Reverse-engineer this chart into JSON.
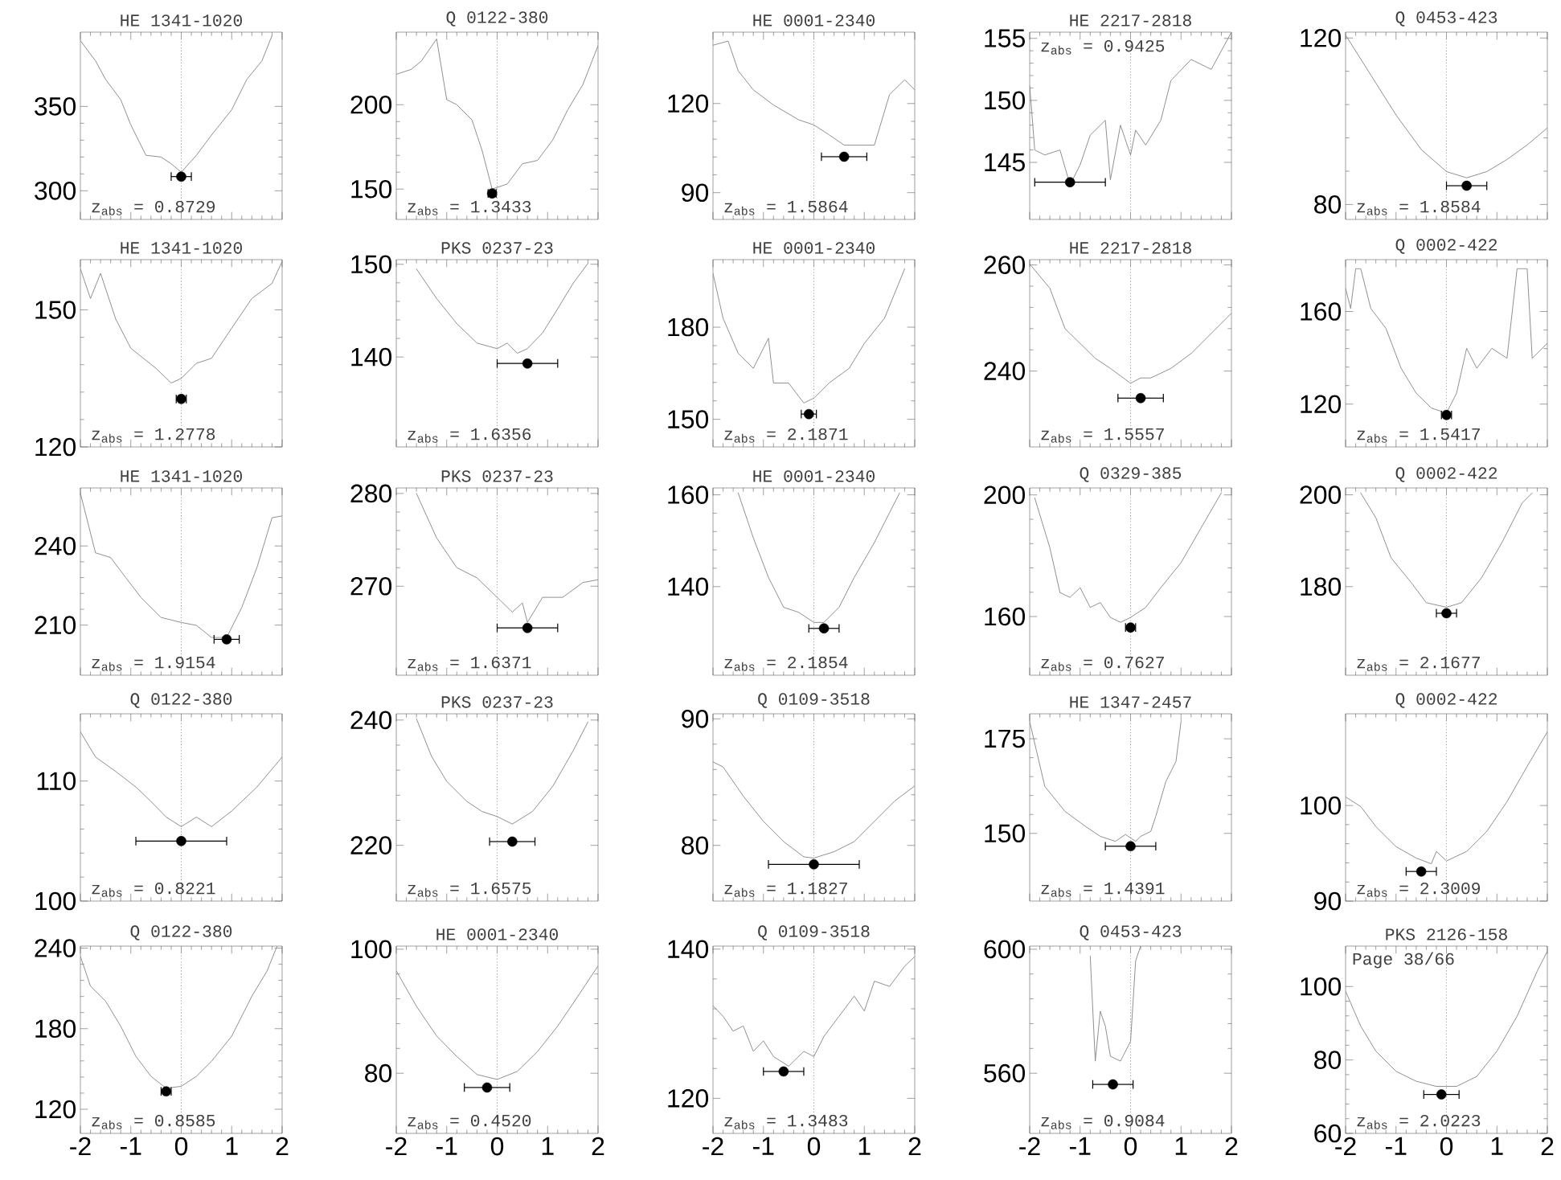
{
  "chart_data": [
    {
      "type": "line",
      "title": "HE 1341-1020",
      "xlim": [
        -2,
        2
      ],
      "ylim": [
        283,
        394
      ],
      "xticks": [
        -2,
        -1,
        0,
        1,
        2
      ],
      "yticks": [
        300,
        350
      ],
      "tick_labels": "y",
      "ref_lines": [
        {
          "axis": "x",
          "value": 0,
          "line_style": "dotted",
          "color": "#999999"
        }
      ],
      "annotations": [
        "z$_{abs}$ = 0.8729"
      ],
      "series": [
        {
          "type": "line",
          "color": "#888888",
          "x": [
            -2,
            -1.7,
            -1.5,
            -1.2,
            -1,
            -0.7,
            -0.4,
            -0.2,
            0,
            0.3,
            0.6,
            1,
            1.3,
            1.6,
            1.8
          ],
          "values": [
            389,
            377,
            366,
            354,
            339,
            321,
            320,
            316,
            311,
            321,
            333,
            348,
            366,
            377,
            392
          ]
        },
        {
          "type": "scatter",
          "color": "#000000",
          "marker": "circle",
          "x": [
            0
          ],
          "values": [
            308.4
          ],
          "xerrors": [
            0.2
          ]
        }
      ]
    },
    {
      "type": "line",
      "title": "Q 0122-380",
      "xlim": [
        -2,
        2
      ],
      "ylim": [
        132,
        243
      ],
      "xticks": [
        -2,
        -1,
        0,
        1,
        2
      ],
      "yticks": [
        150,
        200
      ],
      "tick_labels": "y",
      "ref_lines": [
        {
          "axis": "x",
          "value": 0,
          "line_style": "dotted",
          "color": "#999999"
        }
      ],
      "annotations": [
        "z$_{abs}$ = 1.3433"
      ],
      "series": [
        {
          "type": "line",
          "color": "#888888",
          "x": [
            -2,
            -1.7,
            -1.5,
            -1.2,
            -1,
            -0.8,
            -0.5,
            -0.3,
            -0.1,
            0.2,
            0.5,
            0.8,
            1.1,
            1.4,
            1.7,
            2
          ],
          "values": [
            218,
            221,
            226,
            239,
            203,
            200,
            191,
            173,
            150,
            153,
            165,
            167,
            179,
            197,
            212,
            235
          ]
        },
        {
          "type": "scatter",
          "color": "#000000",
          "marker": "circle",
          "x": [
            -0.1
          ],
          "values": [
            147.4
          ],
          "xerrors": [
            0.08
          ]
        }
      ]
    },
    {
      "type": "line",
      "title": "HE 0001-2340",
      "xlim": [
        -2,
        2
      ],
      "ylim": [
        81,
        144
      ],
      "xticks": [
        -2,
        -1,
        0,
        1,
        2
      ],
      "yticks": [
        90,
        120
      ],
      "tick_labels": "y",
      "ref_lines": [
        {
          "axis": "x",
          "value": 0,
          "line_style": "dotted",
          "color": "#999999"
        }
      ],
      "annotations": [
        "z$_{abs}$ = 1.5864"
      ],
      "series": [
        {
          "type": "line",
          "color": "#888888",
          "x": [
            -2,
            -1.7,
            -1.5,
            -1.2,
            -0.8,
            -0.3,
            0,
            0.3,
            0.6,
            0.9,
            1.2,
            1.5,
            1.8,
            2
          ],
          "values": [
            139.6,
            141,
            131,
            124.6,
            119.5,
            114.5,
            112.8,
            109.5,
            106,
            106,
            106,
            123,
            128,
            124.6
          ]
        },
        {
          "type": "scatter",
          "color": "#000000",
          "marker": "circle",
          "x": [
            0.6
          ],
          "values": [
            102.1
          ],
          "xerrors": [
            0.45
          ]
        }
      ]
    },
    {
      "type": "line",
      "title": "HE 2217-2818",
      "xlim": [
        -2,
        2
      ],
      "ylim": [
        140.4,
        155.5
      ],
      "xticks": [
        -2,
        -1,
        0,
        1,
        2
      ],
      "yticks": [
        145,
        150,
        155
      ],
      "tick_labels": "y",
      "ref_lines": [
        {
          "axis": "x",
          "value": 0,
          "line_style": "dotted",
          "color": "#999999"
        }
      ],
      "annotations": [
        "z$_{abs}$ = 0.9425"
      ],
      "series": [
        {
          "type": "line",
          "color": "#888888",
          "x": [
            -2,
            -1.9,
            -1.7,
            -1.4,
            -1.2,
            -1,
            -0.8,
            -0.5,
            -0.4,
            -0.2,
            0,
            0.1,
            0.3,
            0.6,
            0.8,
            1.2,
            1.6,
            2
          ],
          "values": [
            151.2,
            146,
            145.6,
            146,
            143.2,
            144.8,
            147.2,
            148.4,
            143.6,
            148,
            145.6,
            147.6,
            146.4,
            148.4,
            151.6,
            153.3,
            152.5,
            155.5
          ]
        },
        {
          "type": "scatter",
          "color": "#000000",
          "marker": "circle",
          "x": [
            -1.2
          ],
          "values": [
            143.4
          ],
          "xerrors": [
            0.7
          ]
        }
      ]
    },
    {
      "type": "line",
      "title": "Q 0453-423",
      "xlim": [
        -2,
        2
      ],
      "ylim": [
        76.4,
        121.4
      ],
      "xticks": [
        -2,
        -1,
        0,
        1,
        2
      ],
      "yticks": [
        80,
        120
      ],
      "tick_labels": "y",
      "ref_lines": [
        {
          "axis": "x",
          "value": 0,
          "line_style": "dotted",
          "color": "#999999"
        }
      ],
      "annotations": [
        "z$_{abs}$ = 1.8584"
      ],
      "series": [
        {
          "type": "line",
          "color": "#888888",
          "x": [
            -2,
            -1.5,
            -1,
            -0.5,
            0,
            0.4,
            0.8,
            1.2,
            1.6,
            2
          ],
          "values": [
            120.7,
            111.1,
            101.5,
            93.2,
            87.9,
            86.4,
            87.9,
            90.8,
            94.3,
            98.4
          ]
        },
        {
          "type": "scatter",
          "color": "#000000",
          "marker": "circle",
          "x": [
            0.4
          ],
          "values": [
            84.5
          ],
          "xerrors": [
            0.4
          ]
        }
      ]
    },
    {
      "type": "line",
      "title": "HE 1341-1020",
      "xlim": [
        -2,
        2
      ],
      "ylim": [
        120,
        161
      ],
      "xticks": [
        -2,
        -1,
        0,
        1,
        2
      ],
      "yticks": [
        120,
        150
      ],
      "tick_labels": "y",
      "ref_lines": [
        {
          "axis": "x",
          "value": 0,
          "line_style": "dotted",
          "color": "#999999"
        }
      ],
      "annotations": [
        "z$_{abs}$ = 1.2778"
      ],
      "series": [
        {
          "type": "line",
          "color": "#888888",
          "x": [
            -2,
            -1.8,
            -1.6,
            -1.3,
            -1,
            -0.5,
            -0.2,
            0,
            0.3,
            0.6,
            1,
            1.4,
            1.8,
            2
          ],
          "values": [
            159,
            152.5,
            158,
            148,
            141.6,
            137.2,
            134,
            135,
            138.3,
            139.4,
            146,
            152.5,
            155.8,
            160.6
          ]
        },
        {
          "type": "scatter",
          "color": "#000000",
          "marker": "circle",
          "x": [
            0
          ],
          "values": [
            130.5
          ],
          "xerrors": [
            0.1
          ]
        }
      ]
    },
    {
      "type": "line",
      "title": "PKS 0237-23",
      "xlim": [
        -2,
        2
      ],
      "ylim": [
        130.3,
        150.5
      ],
      "xticks": [
        -2,
        -1,
        0,
        1,
        2
      ],
      "yticks": [
        140,
        150
      ],
      "tick_labels": "y",
      "ref_lines": [
        {
          "axis": "x",
          "value": 0,
          "line_style": "dotted",
          "color": "#999999"
        }
      ],
      "annotations": [
        "z$_{abs}$ = 1.6356"
      ],
      "series": [
        {
          "type": "line",
          "color": "#888888",
          "x": [
            -1.6,
            -1.2,
            -0.8,
            -0.4,
            0,
            0.2,
            0.4,
            0.6,
            0.9,
            1.2,
            1.5,
            1.8
          ],
          "values": [
            149.5,
            146.3,
            143.6,
            141.5,
            140.9,
            141.5,
            140.4,
            140.9,
            142.6,
            145.2,
            147.9,
            150.1
          ]
        },
        {
          "type": "scatter",
          "color": "#000000",
          "marker": "circle",
          "x": [
            0.6
          ],
          "values": [
            139.3
          ],
          "xerrors": [
            0.6
          ]
        }
      ]
    },
    {
      "type": "line",
      "title": "HE 0001-2340",
      "xlim": [
        -2,
        2
      ],
      "ylim": [
        141,
        202
      ],
      "xticks": [
        -2,
        -1,
        0,
        1,
        2
      ],
      "yticks": [
        150,
        180
      ],
      "tick_labels": "y",
      "ref_lines": [
        {
          "axis": "x",
          "value": 0,
          "line_style": "dotted",
          "color": "#999999"
        }
      ],
      "annotations": [
        "z$_{abs}$ = 2.1871"
      ],
      "series": [
        {
          "type": "line",
          "color": "#888888",
          "x": [
            -2,
            -1.8,
            -1.5,
            -1.2,
            -0.9,
            -0.8,
            -0.5,
            -0.2,
            0,
            0.3,
            0.7,
            1,
            1.4,
            1.8
          ],
          "values": [
            197.5,
            182.9,
            171.5,
            166.6,
            176.4,
            161.8,
            161.8,
            155.3,
            156.9,
            161.8,
            166.6,
            174.7,
            182.9,
            199
          ]
        },
        {
          "type": "scatter",
          "color": "#000000",
          "marker": "circle",
          "x": [
            -0.1
          ],
          "values": [
            151.7
          ],
          "xerrors": [
            0.15
          ]
        }
      ]
    },
    {
      "type": "line",
      "title": "HE 2217-2818",
      "xlim": [
        -2,
        2
      ],
      "ylim": [
        225.7,
        261
      ],
      "xticks": [
        -2,
        -1,
        0,
        1,
        2
      ],
      "yticks": [
        240,
        260
      ],
      "tick_labels": "y",
      "ref_lines": [
        {
          "axis": "x",
          "value": 0,
          "line_style": "dotted",
          "color": "#999999"
        }
      ],
      "annotations": [
        "z$_{abs}$ = 1.5557"
      ],
      "series": [
        {
          "type": "line",
          "color": "#888888",
          "x": [
            -2,
            -1.6,
            -1.3,
            -1,
            -0.7,
            -0.4,
            0,
            0.2,
            0.4,
            0.8,
            1.2,
            1.6,
            2
          ],
          "values": [
            260.2,
            255.6,
            248,
            245.2,
            242.4,
            240.5,
            237.7,
            238.7,
            238.7,
            240.5,
            243.3,
            247.1,
            250.9
          ]
        },
        {
          "type": "scatter",
          "color": "#000000",
          "marker": "circle",
          "x": [
            0.2
          ],
          "values": [
            234.9
          ],
          "xerrors": [
            0.45
          ]
        }
      ]
    },
    {
      "type": "line",
      "title": "Q 0002-422",
      "xlim": [
        -2,
        2
      ],
      "ylim": [
        101.5,
        182.4
      ],
      "xticks": [
        -2,
        -1,
        0,
        1,
        2
      ],
      "yticks": [
        120,
        160
      ],
      "tick_labels": "y",
      "ref_lines": [
        {
          "axis": "x",
          "value": 0,
          "line_style": "dotted",
          "color": "#999999"
        }
      ],
      "annotations": [
        "z$_{abs}$ = 1.5417"
      ],
      "series": [
        {
          "type": "line",
          "color": "#888888",
          "x": [
            -2,
            -1.9,
            -1.8,
            -1.7,
            -1.5,
            -1.2,
            -0.9,
            -0.6,
            -0.3,
            0,
            0.2,
            0.4,
            0.6,
            0.9,
            1.2,
            1.4,
            1.6,
            1.7,
            2
          ],
          "values": [
            170,
            161.3,
            178.5,
            178.5,
            161.3,
            152.7,
            135.5,
            124.7,
            118.3,
            116.1,
            124.7,
            144.1,
            135.5,
            144.1,
            139.8,
            178.5,
            178.5,
            139.8,
            146.3
          ]
        },
        {
          "type": "scatter",
          "color": "#000000",
          "marker": "circle",
          "x": [
            0
          ],
          "values": [
            115.3
          ],
          "xerrors": [
            0.1
          ]
        }
      ]
    },
    {
      "type": "line",
      "title": "HE 1341-1020",
      "xlim": [
        -2,
        2
      ],
      "ylim": [
        191,
        262
      ],
      "xticks": [
        -2,
        -1,
        0,
        1,
        2
      ],
      "yticks": [
        210,
        240
      ],
      "tick_labels": "y",
      "ref_lines": [
        {
          "axis": "x",
          "value": 0,
          "line_style": "dotted",
          "color": "#999999"
        }
      ],
      "annotations": [
        "z$_{abs}$ = 1.9154"
      ],
      "series": [
        {
          "type": "line",
          "color": "#888888",
          "x": [
            -2,
            -1.7,
            -1.4,
            -1.1,
            -0.8,
            -0.4,
            0,
            0.3,
            0.6,
            0.9,
            1.2,
            1.5,
            1.8,
            2
          ],
          "values": [
            260,
            237.4,
            235.6,
            228,
            220.5,
            212.9,
            211,
            209.9,
            205.3,
            205.3,
            216.7,
            231.8,
            250.7,
            251.4
          ]
        },
        {
          "type": "scatter",
          "color": "#000000",
          "marker": "circle",
          "x": [
            0.9
          ],
          "values": [
            204.6
          ],
          "xerrors": [
            0.25
          ]
        }
      ]
    },
    {
      "type": "line",
      "title": "PKS 0237-23",
      "xlim": [
        -2,
        2
      ],
      "ylim": [
        260.4,
        280.6
      ],
      "xticks": [
        -2,
        -1,
        0,
        1,
        2
      ],
      "yticks": [
        270,
        280
      ],
      "tick_labels": "y",
      "ref_lines": [
        {
          "axis": "x",
          "value": 0,
          "line_style": "dotted",
          "color": "#999999"
        }
      ],
      "annotations": [
        "z$_{abs}$ = 1.6371"
      ],
      "series": [
        {
          "type": "line",
          "color": "#888888",
          "x": [
            -1.6,
            -1.2,
            -0.8,
            -0.4,
            0,
            0.3,
            0.5,
            0.6,
            0.9,
            1.3,
            1.7,
            2
          ],
          "values": [
            280,
            275.2,
            272,
            270.9,
            268.8,
            267.2,
            268.2,
            266.1,
            268.8,
            268.8,
            270.4,
            270.7
          ]
        },
        {
          "type": "scatter",
          "color": "#000000",
          "marker": "circle",
          "x": [
            0.6
          ],
          "values": [
            265.5
          ],
          "xerrors": [
            0.6
          ]
        }
      ]
    },
    {
      "type": "line",
      "title": "HE 0001-2340",
      "xlim": [
        -2,
        2
      ],
      "ylim": [
        120.7,
        161.5
      ],
      "xticks": [
        -2,
        -1,
        0,
        1,
        2
      ],
      "yticks": [
        140,
        160
      ],
      "tick_labels": "y",
      "ref_lines": [
        {
          "axis": "x",
          "value": 0,
          "line_style": "dotted",
          "color": "#999999"
        }
      ],
      "annotations": [
        "z$_{abs}$ = 2.1854"
      ],
      "series": [
        {
          "type": "line",
          "color": "#888888",
          "x": [
            -1.5,
            -1.2,
            -0.9,
            -0.6,
            -0.3,
            0,
            0.2,
            0.5,
            0.8,
            1.2,
            1.5,
            1.7
          ],
          "values": [
            160.4,
            150.6,
            142,
            135.5,
            134.4,
            132.2,
            132.2,
            135.5,
            142,
            149.6,
            156.1,
            160.4
          ]
        },
        {
          "type": "scatter",
          "color": "#000000",
          "marker": "circle",
          "x": [
            0.2
          ],
          "values": [
            130.9
          ],
          "xerrors": [
            0.3
          ]
        }
      ]
    },
    {
      "type": "line",
      "title": "Q 0329-385",
      "xlim": [
        -2,
        2
      ],
      "ylim": [
        140.7,
        202.3
      ],
      "xticks": [
        -2,
        -1,
        0,
        1,
        2
      ],
      "yticks": [
        160,
        200
      ],
      "tick_labels": "y",
      "ref_lines": [
        {
          "axis": "x",
          "value": 0,
          "line_style": "dotted",
          "color": "#999999"
        }
      ],
      "annotations": [
        "z$_{abs}$ = 0.7627"
      ],
      "series": [
        {
          "type": "line",
          "color": "#888888",
          "x": [
            -1.9,
            -1.6,
            -1.4,
            -1.2,
            -1,
            -0.8,
            -0.6,
            -0.4,
            -0.2,
            0,
            0.3,
            0.6,
            1,
            1.4,
            1.8
          ],
          "values": [
            199,
            182.6,
            167.9,
            166.3,
            169.5,
            163,
            164.6,
            159.7,
            158.1,
            159.7,
            163,
            169.5,
            177.7,
            189.2,
            200.7
          ]
        },
        {
          "type": "scatter",
          "color": "#000000",
          "marker": "circle",
          "x": [
            0
          ],
          "values": [
            156.4
          ],
          "xerrors": [
            0.1
          ]
        }
      ]
    },
    {
      "type": "line",
      "title": "Q 0002-422",
      "xlim": [
        -2,
        2
      ],
      "ylim": [
        160.7,
        201.5
      ],
      "xticks": [
        -2,
        -1,
        0,
        1,
        2
      ],
      "yticks": [
        180,
        200
      ],
      "tick_labels": "y",
      "ref_lines": [
        {
          "axis": "x",
          "value": 0,
          "line_style": "dotted",
          "color": "#999999"
        }
      ],
      "annotations": [
        "z$_{abs}$ = 2.1677"
      ],
      "series": [
        {
          "type": "line",
          "color": "#888888",
          "x": [
            -1.7,
            -1.4,
            -1.1,
            -0.7,
            -0.4,
            0,
            0.3,
            0.7,
            1.1,
            1.5,
            1.7
          ],
          "values": [
            200.4,
            195,
            186.3,
            180.9,
            176.5,
            175.5,
            176.5,
            182,
            189.6,
            198.2,
            200.4
          ]
        },
        {
          "type": "scatter",
          "color": "#000000",
          "marker": "circle",
          "x": [
            0
          ],
          "values": [
            174.2
          ],
          "xerrors": [
            0.2
          ]
        }
      ]
    },
    {
      "type": "line",
      "title": "Q 0122-380",
      "xlim": [
        -2,
        2
      ],
      "ylim": [
        100,
        115.6
      ],
      "xticks": [
        -2,
        -1,
        0,
        1,
        2
      ],
      "yticks": [
        100,
        110
      ],
      "tick_labels": "y",
      "ref_lines": [
        {
          "axis": "x",
          "value": 0,
          "line_style": "dotted",
          "color": "#999999"
        }
      ],
      "annotations": [
        "z$_{abs}$ = 0.8221"
      ],
      "series": [
        {
          "type": "line",
          "color": "#888888",
          "x": [
            -2,
            -1.7,
            -1.3,
            -0.9,
            -0.6,
            -0.3,
            0,
            0.3,
            0.6,
            1,
            1.5,
            2
          ],
          "values": [
            114.1,
            112,
            110.8,
            109.5,
            108.3,
            107,
            106.2,
            107,
            106.2,
            107.5,
            109.5,
            112
          ]
        },
        {
          "type": "scatter",
          "color": "#000000",
          "marker": "circle",
          "x": [
            0
          ],
          "values": [
            105
          ],
          "xerrors": [
            0.9
          ]
        }
      ]
    },
    {
      "type": "line",
      "title": "PKS 0237-23",
      "xlim": [
        -2,
        2
      ],
      "ylim": [
        211.1,
        241
      ],
      "xticks": [
        -2,
        -1,
        0,
        1,
        2
      ],
      "yticks": [
        220,
        240
      ],
      "tick_labels": "y",
      "ref_lines": [
        {
          "axis": "x",
          "value": 0,
          "line_style": "dotted",
          "color": "#999999"
        }
      ],
      "annotations": [
        "z$_{abs}$ = 1.6575"
      ],
      "series": [
        {
          "type": "line",
          "color": "#888888",
          "x": [
            -1.6,
            -1.3,
            -1,
            -0.6,
            -0.3,
            0,
            0.3,
            0.7,
            1.1,
            1.5,
            1.8
          ],
          "values": [
            240.2,
            234.2,
            230.2,
            227,
            225.4,
            224.6,
            223.4,
            225.4,
            229.4,
            235,
            239.7
          ]
        },
        {
          "type": "scatter",
          "color": "#000000",
          "marker": "circle",
          "x": [
            0.3
          ],
          "values": [
            220.6
          ],
          "xerrors": [
            0.45
          ]
        }
      ]
    },
    {
      "type": "line",
      "title": "Q 0109-3518",
      "xlim": [
        -2,
        2
      ],
      "ylim": [
        75.6,
        90.4
      ],
      "xticks": [
        -2,
        -1,
        0,
        1,
        2
      ],
      "yticks": [
        80,
        90
      ],
      "tick_labels": "y",
      "ref_lines": [
        {
          "axis": "x",
          "value": 0,
          "line_style": "dotted",
          "color": "#999999"
        }
      ],
      "annotations": [
        "z$_{abs}$ = 1.1827"
      ],
      "series": [
        {
          "type": "line",
          "color": "#888888",
          "x": [
            -2,
            -1.8,
            -1.4,
            -1,
            -0.6,
            -0.2,
            0,
            0.4,
            0.8,
            1.2,
            1.6,
            2
          ],
          "values": [
            86.6,
            86.2,
            83.9,
            81.9,
            80.3,
            79.1,
            79,
            79.5,
            80.3,
            81.9,
            83.5,
            84.7
          ]
        },
        {
          "type": "scatter",
          "color": "#000000",
          "marker": "circle",
          "x": [
            0
          ],
          "values": [
            78.5
          ],
          "xerrors": [
            0.9
          ]
        }
      ]
    },
    {
      "type": "line",
      "title": "HE 1347-2457",
      "xlim": [
        -2,
        2
      ],
      "ylim": [
        132.1,
        181.6
      ],
      "xticks": [
        -2,
        -1,
        0,
        1,
        2
      ],
      "yticks": [
        150,
        175
      ],
      "tick_labels": "y",
      "ref_lines": [
        {
          "axis": "x",
          "value": 0,
          "line_style": "dotted",
          "color": "#999999"
        }
      ],
      "annotations": [
        "z$_{abs}$ = 1.4391"
      ],
      "series": [
        {
          "type": "line",
          "color": "#888888",
          "x": [
            -2,
            -1.7,
            -1.3,
            -0.9,
            -0.6,
            -0.3,
            -0.1,
            0.1,
            0.2,
            0.4,
            0.5,
            0.7,
            0.9,
            1
          ],
          "values": [
            179.5,
            162.4,
            155.8,
            151.9,
            149.2,
            147.9,
            149.7,
            147.9,
            149.2,
            150.5,
            154.5,
            163.7,
            169,
            179.5
          ]
        },
        {
          "type": "scatter",
          "color": "#000000",
          "marker": "circle",
          "x": [
            0
          ],
          "values": [
            146.6
          ],
          "xerrors": [
            0.5
          ]
        }
      ]
    },
    {
      "type": "line",
      "title": "Q 0002-422",
      "xlim": [
        -2,
        2
      ],
      "ylim": [
        90,
        109.6
      ],
      "xticks": [
        -2,
        -1,
        0,
        1,
        2
      ],
      "yticks": [
        90,
        100
      ],
      "tick_labels": "y",
      "ref_lines": [
        {
          "axis": "x",
          "value": 0,
          "line_style": "dotted",
          "color": "#999999"
        }
      ],
      "annotations": [
        "z$_{abs}$ = 2.3009"
      ],
      "series": [
        {
          "type": "line",
          "color": "#888888",
          "x": [
            -2,
            -1.7,
            -1.4,
            -1,
            -0.6,
            -0.3,
            -0.2,
            0,
            0.4,
            0.8,
            1.2,
            1.6,
            2
          ],
          "values": [
            100.9,
            99.9,
            97.8,
            95.7,
            94.5,
            93.9,
            95.2,
            94.2,
            95.2,
            97.3,
            100.4,
            104.1,
            107.7
          ]
        },
        {
          "type": "scatter",
          "color": "#000000",
          "marker": "circle",
          "x": [
            -0.5
          ],
          "values": [
            93.1
          ],
          "xerrors": [
            0.3
          ]
        }
      ]
    },
    {
      "type": "line",
      "title": "Q 0122-380",
      "xlim": [
        -2,
        2
      ],
      "ylim": [
        102,
        241.5
      ],
      "xticks": [
        -2,
        -1,
        0,
        1,
        2
      ],
      "yticks": [
        120,
        180,
        240
      ],
      "ref_lines": [
        {
          "axis": "x",
          "value": 0,
          "line_style": "dotted",
          "color": "#999999"
        }
      ],
      "annotations": [
        "z$_{abs}$ = 0.8585"
      ],
      "series": [
        {
          "type": "line",
          "color": "#888888",
          "x": [
            -2,
            -1.8,
            -1.5,
            -1.2,
            -0.9,
            -0.6,
            -0.3,
            0,
            0.3,
            0.6,
            1,
            1.4,
            1.7,
            1.9
          ],
          "values": [
            234,
            211.7,
            200.5,
            181.8,
            159.4,
            144.5,
            135.6,
            137.1,
            144.5,
            155.7,
            174.4,
            204.2,
            222.9,
            241.5
          ]
        },
        {
          "type": "scatter",
          "color": "#000000",
          "marker": "circle",
          "x": [
            -0.3
          ],
          "values": [
            133.3
          ],
          "xerrors": [
            0.1
          ]
        }
      ]
    },
    {
      "type": "line",
      "title": "HE 0001-2340",
      "xlim": [
        -2,
        2
      ],
      "ylim": [
        70.3,
        100.5
      ],
      "xticks": [
        -2,
        -1,
        0,
        1,
        2
      ],
      "yticks": [
        80,
        100
      ],
      "ref_lines": [
        {
          "axis": "x",
          "value": 0,
          "line_style": "dotted",
          "color": "#999999"
        }
      ],
      "annotations": [
        "z$_{abs}$ = 0.4520"
      ],
      "series": [
        {
          "type": "line",
          "color": "#888888",
          "x": [
            -2,
            -1.6,
            -1.2,
            -0.8,
            -0.4,
            0,
            0.4,
            0.8,
            1.2,
            1.6,
            2
          ],
          "values": [
            96.5,
            90.8,
            86,
            82.7,
            79.8,
            79,
            80.3,
            83.5,
            87.6,
            92.4,
            97.3
          ]
        },
        {
          "type": "scatter",
          "color": "#000000",
          "marker": "circle",
          "x": [
            -0.2
          ],
          "values": [
            77.7
          ],
          "xerrors": [
            0.45
          ]
        }
      ]
    },
    {
      "type": "line",
      "title": "Q 0109-3518",
      "xlim": [
        -2,
        2
      ],
      "ylim": [
        115.3,
        140.4
      ],
      "xticks": [
        -2,
        -1,
        0,
        1,
        2
      ],
      "yticks": [
        120,
        140
      ],
      "ref_lines": [
        {
          "axis": "x",
          "value": 0,
          "line_style": "dotted",
          "color": "#999999"
        }
      ],
      "annotations": [
        "z$_{abs}$ = 1.3483"
      ],
      "series": [
        {
          "type": "line",
          "color": "#888888",
          "x": [
            -2,
            -1.8,
            -1.6,
            -1.4,
            -1.2,
            -1,
            -0.8,
            -0.5,
            -0.2,
            0,
            0.2,
            0.5,
            0.8,
            1,
            1.2,
            1.5,
            1.8,
            2
          ],
          "values": [
            132.4,
            131,
            129,
            129.7,
            126.3,
            127.7,
            125.6,
            124.3,
            126.3,
            125.6,
            128.3,
            131,
            133.7,
            131.7,
            135.7,
            135,
            137.7,
            139
          ]
        },
        {
          "type": "scatter",
          "color": "#000000",
          "marker": "circle",
          "x": [
            -0.6
          ],
          "values": [
            123.6
          ],
          "xerrors": [
            0.4
          ]
        }
      ]
    },
    {
      "type": "line",
      "title": "Q 0453-423",
      "xlim": [
        -2,
        2
      ],
      "ylim": [
        540.6,
        601
      ],
      "xticks": [
        -2,
        -1,
        0,
        1,
        2
      ],
      "yticks": [
        560,
        600
      ],
      "ref_lines": [
        {
          "axis": "x",
          "value": 0,
          "line_style": "dotted",
          "color": "#999999"
        }
      ],
      "annotations": [
        "z$_{abs}$ = 0.9084"
      ],
      "series": [
        {
          "type": "line",
          "color": "#888888",
          "x": [
            -0.8,
            -0.7,
            -0.6,
            -0.5,
            -0.4,
            -0.2,
            0,
            0.1,
            0.2
          ],
          "values": [
            597.8,
            563.9,
            580,
            575.2,
            565.5,
            563.9,
            570.3,
            596.2,
            601
          ]
        },
        {
          "type": "scatter",
          "color": "#000000",
          "marker": "circle",
          "x": [
            -0.35
          ],
          "values": [
            556.4
          ],
          "xerrors": [
            0.4
          ]
        }
      ]
    },
    {
      "type": "line",
      "title": "PKS 2126-158",
      "xlim": [
        -2,
        2
      ],
      "ylim": [
        60,
        111
      ],
      "xticks": [
        -2,
        -1,
        0,
        1,
        2
      ],
      "yticks": [
        60,
        80,
        100
      ],
      "ref_lines": [
        {
          "axis": "x",
          "value": 0,
          "line_style": "dotted",
          "color": "#999999"
        }
      ],
      "annotations": [
        "z$_{abs}$ = 2.0223",
        "Page 38/66"
      ],
      "series": [
        {
          "type": "line",
          "color": "#888888",
          "x": [
            -2,
            -1.7,
            -1.4,
            -1,
            -0.6,
            -0.2,
            0.2,
            0.6,
            1,
            1.4,
            1.8,
            2
          ],
          "values": [
            98.7,
            89.2,
            82.4,
            76.9,
            74.2,
            72.8,
            72.8,
            75.5,
            82.4,
            91.9,
            104.2,
            109.6
          ]
        },
        {
          "type": "scatter",
          "color": "#000000",
          "marker": "circle",
          "x": [
            -0.1
          ],
          "values": [
            70.6
          ],
          "xerrors": [
            0.35
          ]
        }
      ]
    }
  ]
}
